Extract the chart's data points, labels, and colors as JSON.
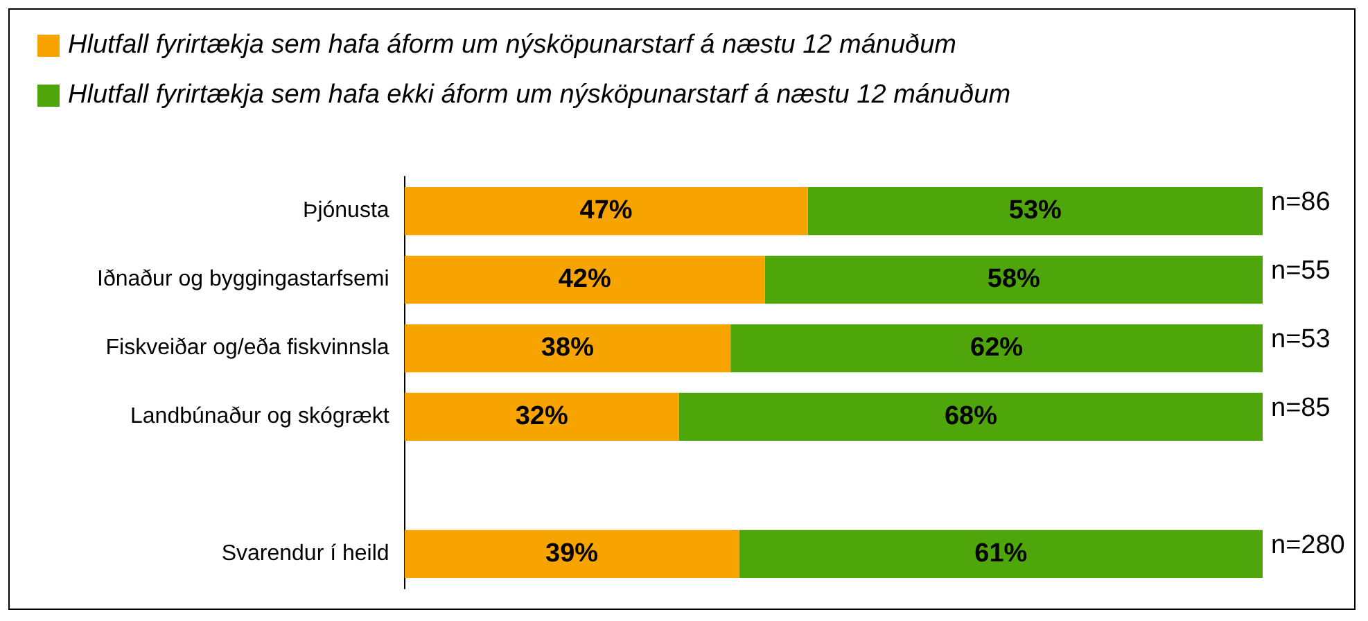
{
  "chart_data": {
    "type": "bar",
    "orientation": "horizontal",
    "stacked": true,
    "legend": "top left",
    "categories": [
      "Þjónusta",
      "Iðnaður og byggingastarfsemi",
      "Fiskveiðar og/eða fiskvinnsla",
      "Landbúnaður og skógrækt",
      null,
      "Svarendur í heild"
    ],
    "series": [
      {
        "name": "Hlutfall fyrirtækja sem hafa áform um nýsköpunarstarf á næstu 12 mánuðum",
        "color": "#f7a300",
        "values": [
          47,
          42,
          38,
          32,
          null,
          39
        ],
        "value_labels": [
          "47%",
          "42%",
          "38%",
          "32%",
          null,
          "39%"
        ]
      },
      {
        "name": "Hlutfall fyrirtækja sem hafa ekki áform um nýsköpunarstarf á næstu 12 mánuðum",
        "color": "#4ea60a",
        "values": [
          53,
          58,
          62,
          68,
          null,
          61
        ],
        "value_labels": [
          "53%",
          "58%",
          "62%",
          "68%",
          null,
          "61%"
        ]
      }
    ],
    "annotations": [
      "n=86",
      "n=55",
      "n=53",
      "n=85",
      "n=280"
    ]
  }
}
